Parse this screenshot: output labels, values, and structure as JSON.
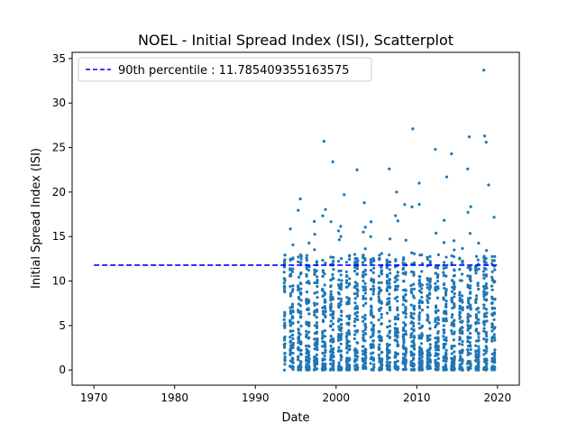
{
  "chart_data": {
    "type": "scatter",
    "title": "NOEL - Initial Spread Index (ISI), Scatterplot",
    "xlabel": "Date",
    "ylabel": "Initial Spread Index (ISI)",
    "x_scale": "date",
    "xlim": [
      1967.3,
      2022.7
    ],
    "ylim": [
      -1.7,
      35.7
    ],
    "x_ticks": [
      1970,
      1980,
      1990,
      2000,
      2010,
      2020
    ],
    "x_tick_labels": [
      "1970",
      "1980",
      "1990",
      "2000",
      "2010",
      "2020"
    ],
    "y_ticks": [
      0,
      5,
      10,
      15,
      20,
      25,
      30,
      35
    ],
    "y_tick_labels": [
      "0",
      "5",
      "10",
      "15",
      "20",
      "25",
      "30",
      "35"
    ],
    "grid": false,
    "legend_position": "upper-left",
    "reference_line": {
      "label": "90th percentile : 11.785409355163575",
      "value": 11.785409355163575,
      "x_start": 1970,
      "x_end": 2020,
      "color": "#0000ff",
      "style": "dashed"
    },
    "series": [
      {
        "marker_color": "#1f77b4",
        "x_range": [
          1993.5,
          2020
        ],
        "points": [
          [
            1998.5,
            25.7
          ],
          [
            2009.5,
            27.1
          ],
          [
            2018.3,
            33.7
          ],
          [
            2016.5,
            26.2
          ],
          [
            2018.4,
            26.3
          ],
          [
            2018.6,
            25.6
          ],
          [
            2012.3,
            24.8
          ],
          [
            2014.3,
            24.3
          ],
          [
            2002.6,
            22.5
          ],
          [
            2006.6,
            22.6
          ],
          [
            1999.6,
            23.4
          ],
          [
            2016.3,
            22.6
          ],
          [
            2001.0,
            19.7
          ],
          [
            2007.5,
            20.0
          ],
          [
            2010.3,
            21.0
          ],
          [
            1995.7,
            12.8
          ],
          [
            2003.5,
            18.8
          ],
          [
            2008.5,
            18.6
          ],
          [
            2013.7,
            21.7
          ],
          [
            2018.9,
            20.8
          ]
        ]
      }
    ]
  }
}
